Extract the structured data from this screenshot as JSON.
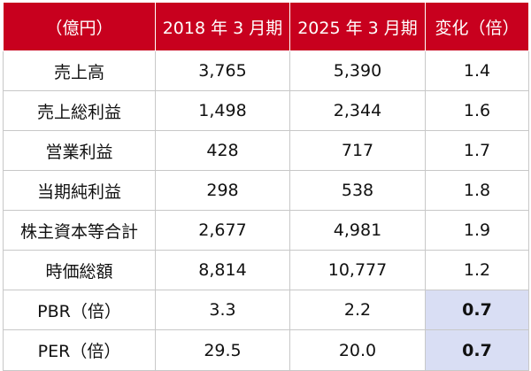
{
  "table": {
    "headers": [
      "（億円）",
      "2018 年 3 月期",
      "2025 年 3 月期",
      "変化（倍）"
    ],
    "rows": [
      {
        "label": "売上高",
        "v2018": "3,765",
        "v2025": "5,390",
        "change": "1.4"
      },
      {
        "label": "売上総利益",
        "v2018": "1,498",
        "v2025": "2,344",
        "change": "1.6"
      },
      {
        "label": "営業利益",
        "v2018": "428",
        "v2025": "717",
        "change": "1.7"
      },
      {
        "label": "当期純利益",
        "v2018": "298",
        "v2025": "538",
        "change": "1.8"
      },
      {
        "label": "株主資本等合計",
        "v2018": "2,677",
        "v2025": "4,981",
        "change": "1.9"
      },
      {
        "label": "時価総額",
        "v2018": "8,814",
        "v2025": "10,777",
        "change": "1.2"
      },
      {
        "label": "PBR（倍）",
        "v2018": "3.3",
        "v2025": "2.2",
        "change": "0.7"
      },
      {
        "label": "PER（倍）",
        "v2018": "29.5",
        "v2025": "20.0",
        "change": "0.7"
      }
    ]
  },
  "colors": {
    "header_bg": "#c8001e",
    "header_text": "#ffffff",
    "highlight_bg": "#d9def4",
    "border": "#c8c8c8"
  }
}
